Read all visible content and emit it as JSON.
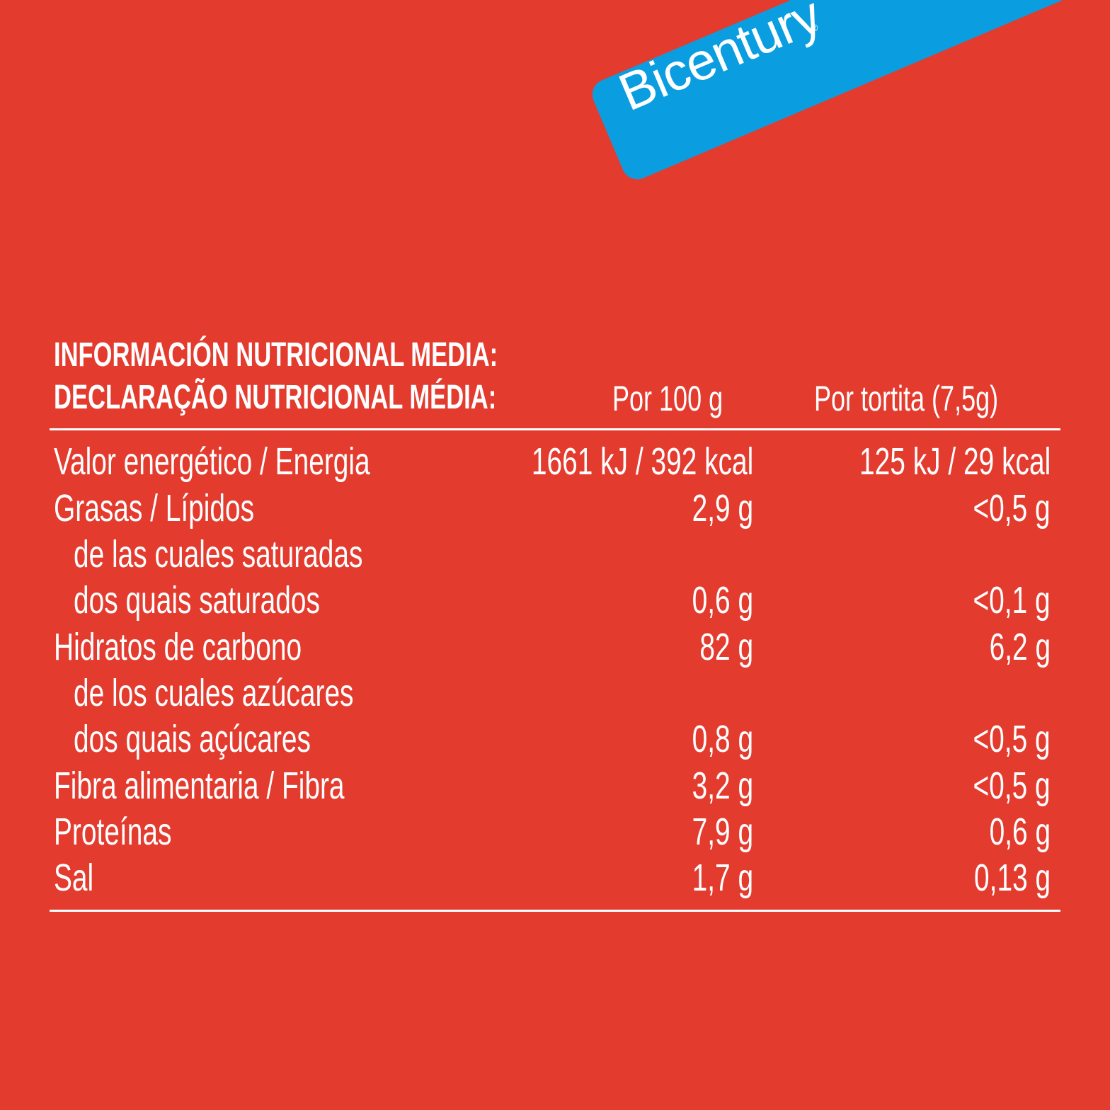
{
  "brand": {
    "name": "Bicentury",
    "registered_mark": "®",
    "colors": {
      "band": "#0a9ee0",
      "background": "#e43b2f",
      "text": "#ffffff"
    }
  },
  "header": {
    "title_es": "INFORMACIÓN NUTRICIONAL MEDIA:",
    "title_pt": "DECLARAÇÃO NUTRICIONAL MÉDIA:",
    "col_per_100": "Por 100 g",
    "col_per_unit": "Por tortita (7,5g)"
  },
  "rows": [
    {
      "label": "Valor energético / Energia",
      "per_100": "1661 kJ / 392 kcal",
      "per_unit": "125 kJ / 29 kcal"
    },
    {
      "label": "Grasas / Lípidos",
      "per_100": "2,9 g",
      "per_unit": "<0,5 g"
    },
    {
      "label": "de las cuales saturadas",
      "per_100": "",
      "per_unit": ""
    },
    {
      "label": "dos quais saturados",
      "per_100": "0,6 g",
      "per_unit": "<0,1 g"
    },
    {
      "label": "Hidratos de carbono",
      "per_100": "82 g",
      "per_unit": "6,2 g"
    },
    {
      "label": "de los cuales azúcares",
      "per_100": "",
      "per_unit": ""
    },
    {
      "label": "dos quais açúcares",
      "per_100": "0,8 g",
      "per_unit": "<0,5 g"
    },
    {
      "label": "Fibra alimentaria / Fibra",
      "per_100": "3,2 g",
      "per_unit": "<0,5 g"
    },
    {
      "label": "Proteínas",
      "per_100": "7,9 g",
      "per_unit": "0,6 g"
    },
    {
      "label": "Sal",
      "per_100": "1,7 g",
      "per_unit": "0,13 g"
    }
  ]
}
